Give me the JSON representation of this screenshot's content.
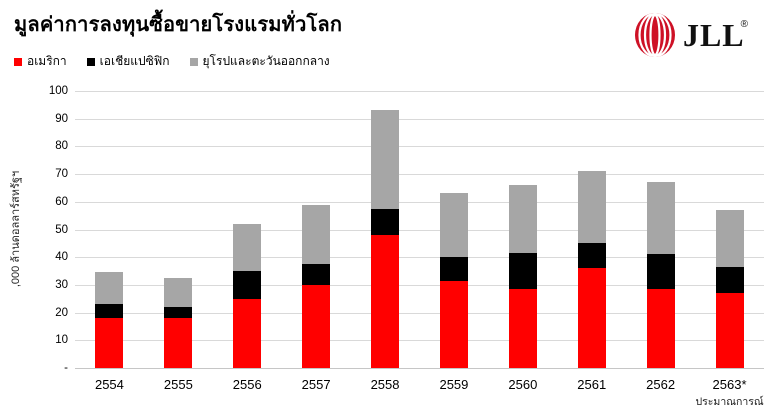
{
  "header": {
    "title": "มูลค่าการลงทุนซื้อขายโรงแรมทั่วโลก",
    "logo_text": "JLL",
    "logo_registered": "®"
  },
  "colors": {
    "america": "#FF0000",
    "asia_pacific": "#000000",
    "europe_middle_east": "#A6A6A6",
    "logo_red": "#CE1126",
    "gridline": "#D9D9D9"
  },
  "legend": [
    {
      "key": "america",
      "label": "อเมริกา",
      "color": "#FF0000"
    },
    {
      "key": "asia-pacific",
      "label": "เอเชียแปซิฟิก",
      "color": "#000000"
    },
    {
      "key": "europe-middle-east",
      "label": "ยุโรปและตะวันออกกลาง",
      "color": "#A6A6A6"
    }
  ],
  "chart_data": {
    "type": "bar",
    "stacked": true,
    "title": "มูลค่าการลงทุนซื้อขายโรงแรมทั่วโลก",
    "ylabel": ",000 ล้านดอลลาร์สหรัฐฯ",
    "ylim": [
      0,
      100
    ],
    "ytick_step": 10,
    "ytick_labels": [
      "100",
      "90",
      "80",
      "70",
      "60",
      "50",
      "40",
      "30",
      "20",
      "10",
      "-"
    ],
    "grid": true,
    "legend_position": "top-left",
    "categories": [
      "2554",
      "2555",
      "2556",
      "2557",
      "2558",
      "2559",
      "2560",
      "2561",
      "2562",
      "2563*"
    ],
    "x_note_label": "ประมาณการณ์",
    "x_note_category": "2563*",
    "series": [
      {
        "key": "america",
        "name": "อเมริกา",
        "color": "#FF0000",
        "values": [
          18,
          18,
          25,
          30,
          48,
          31.5,
          28.5,
          36,
          28.5,
          27
        ]
      },
      {
        "key": "asia-pacific",
        "name": "เอเชียแปซิฟิก",
        "color": "#000000",
        "values": [
          5,
          4,
          10,
          7.5,
          9.5,
          8.5,
          13,
          9,
          12.5,
          9.5
        ]
      },
      {
        "key": "europe-middle-east",
        "name": "ยุโรปและตะวันออกกลาง",
        "color": "#A6A6A6",
        "values": [
          11.5,
          10.5,
          17,
          21.5,
          35.5,
          23,
          24.5,
          26,
          26,
          20.5
        ]
      }
    ],
    "stacked_totals": [
      34.5,
      32.5,
      52,
      59,
      93,
      63,
      66,
      71,
      67,
      57
    ]
  }
}
